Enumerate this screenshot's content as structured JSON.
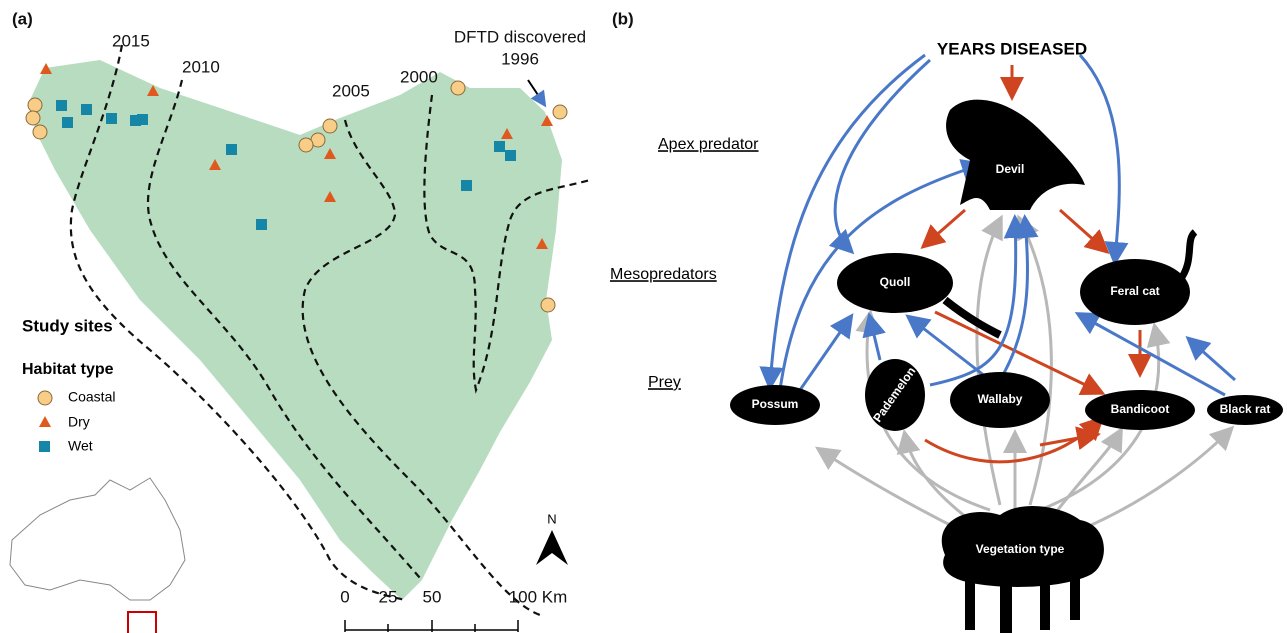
{
  "panel_a": {
    "label": "(a)",
    "contours": [
      "2015",
      "2010",
      "2005",
      "2000"
    ],
    "annotation": [
      "DFTD discovered",
      "1996"
    ],
    "legend": {
      "title": "Study sites",
      "subtitle": "Habitat type",
      "items": [
        "Coastal",
        "Dry",
        "Wet"
      ]
    },
    "scale": [
      "0",
      "25",
      "50",
      "100 Km"
    ],
    "north": "N"
  },
  "panel_b": {
    "label": "(b)",
    "driver": "YEARS DISEASED",
    "levels": [
      "Apex predator",
      "Mesopredators",
      "Prey"
    ],
    "nodes": [
      "Devil",
      "Quoll",
      "Feral cat",
      "Possum",
      "Pademelon",
      "Wallaby",
      "Bandicoot",
      "Black rat",
      "Vegetation type"
    ]
  }
}
